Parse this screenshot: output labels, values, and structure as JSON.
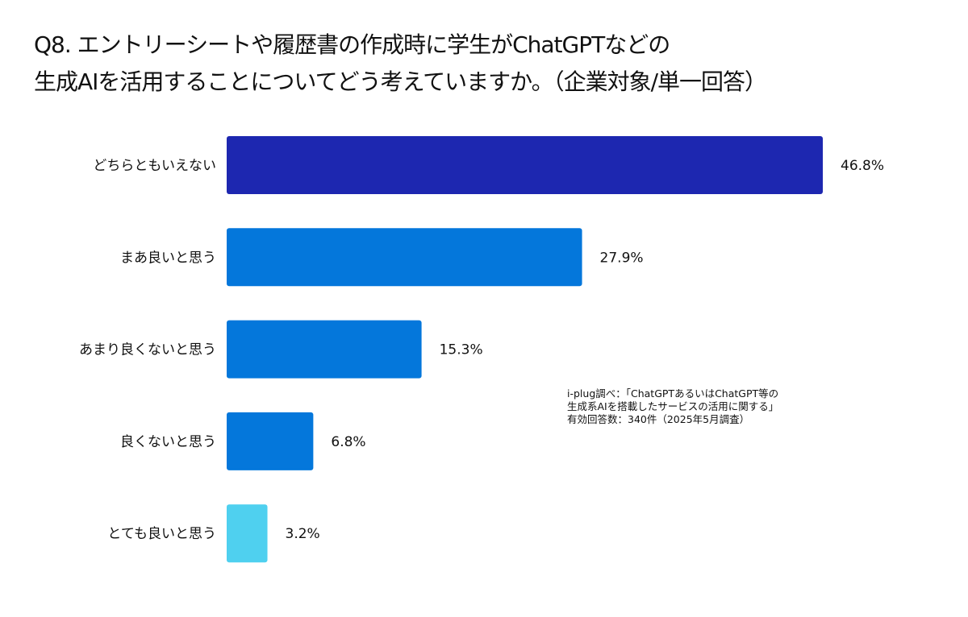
{
  "chart_data": {
    "type": "bar",
    "orientation": "horizontal",
    "title": [
      "Q8. エントリーシートや履歴書の作成時に学生がChatGPTなどの",
      "生成AIを活用することについてどう考えていますか。（企業対象/単一回答）"
    ],
    "categories": [
      "どちらともいえない",
      "まあ良いと思う",
      "あまり良くないと思う",
      "良くないと思う",
      "とても良いと思う"
    ],
    "values": [
      46.8,
      27.9,
      15.3,
      6.8,
      3.2
    ],
    "value_labels": [
      "46.8%",
      "27.9%",
      "15.3%",
      "6.8%",
      "3.2%"
    ],
    "colors": [
      "#1d27b0",
      "#0477db",
      "#0477db",
      "#0477db",
      "#4fd0ef"
    ],
    "unit": "%",
    "xlim": [
      0,
      46.8
    ],
    "grid": false,
    "legend": "none",
    "note": [
      "i-plug調べ：「ChatGPTあるいはChatGPT等の",
      "生成系AIを搭載したサービスの活用に関する」",
      "有効回答数：340件（2025年5月調査）"
    ]
  }
}
